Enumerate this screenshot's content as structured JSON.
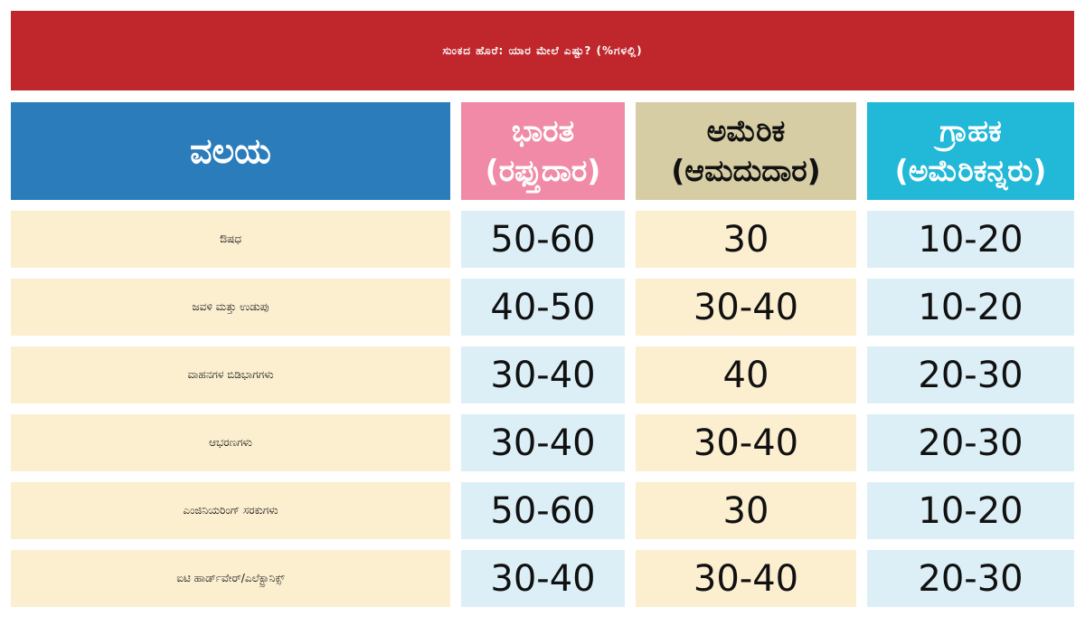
{
  "title": "ಸುಂಕದ ಹೊರೆ: ಯಾರ ಮೇಲೆ ಎಷ್ಟು? (%ಗಳಲ್ಲಿ)",
  "table": {
    "headers": {
      "sector": "ವಲಯ",
      "india_line1": "ಭಾರತ",
      "india_line2": "(ರಫ್ತುದಾರ)",
      "us_line1": "ಅಮೆರಿಕ",
      "us_line2": "(ಆಮದುದಾರ)",
      "consumer_line1": "ಗ್ರಾಹಕ",
      "consumer_line2": "(ಅಮೆರಿಕನ್ನರು)"
    },
    "rows": [
      {
        "sector": "ಔಷಧ",
        "india": "50-60",
        "us": "30",
        "consumer": "10-20"
      },
      {
        "sector": "ಜವಳಿ ಮತ್ತು ಉಡುಪು",
        "india": "40-50",
        "us": "30-40",
        "consumer": "10-20"
      },
      {
        "sector": "ವಾಹನಗಳ ಬಿಡಿಭಾಗಗಳು",
        "india": "30-40",
        "us": "40",
        "consumer": "20-30"
      },
      {
        "sector": "ಆಭರಣಗಳು",
        "india": "30-40",
        "us": "30-40",
        "consumer": "20-30"
      },
      {
        "sector": "ಎಂಜಿನಿಯರಿಂಗ್ ಸರಕುಗಳು",
        "india": "50-60",
        "us": "30",
        "consumer": "10-20"
      },
      {
        "sector": "ಐಟಿ ಹಾರ್ಡ್‌ವೇರ್/ಎಲೆಕ್ಟ್ರಾನಿಕ್ಸ್",
        "india": "30-40",
        "us": "30-40",
        "consumer": "20-30"
      }
    ]
  },
  "colors": {
    "title_bg": "#c0272d",
    "header_sector": "#2b7cba",
    "header_india": "#f08aa6",
    "header_us": "#d6cda4",
    "header_consumer": "#22b8d8",
    "cell_cream": "#fcefd0",
    "cell_blue": "#dcefF7"
  }
}
